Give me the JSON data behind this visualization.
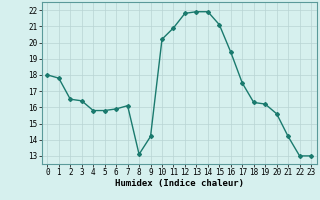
{
  "x": [
    0,
    1,
    2,
    3,
    4,
    5,
    6,
    7,
    8,
    9,
    10,
    11,
    12,
    13,
    14,
    15,
    16,
    17,
    18,
    19,
    20,
    21,
    22,
    23
  ],
  "y": [
    18,
    17.8,
    16.5,
    16.4,
    15.8,
    15.8,
    15.9,
    16.1,
    13.1,
    14.2,
    20.2,
    20.9,
    21.8,
    21.9,
    21.9,
    21.1,
    19.4,
    17.5,
    16.3,
    16.2,
    15.6,
    14.2,
    13.0,
    13.0
  ],
  "line_color": "#1a7a6e",
  "marker": "D",
  "marker_size": 2,
  "bg_color": "#d6f0ee",
  "grid_color": "#b8d4d4",
  "xlabel": "Humidex (Indice chaleur)",
  "ylim": [
    12.5,
    22.5
  ],
  "xlim": [
    -0.5,
    23.5
  ],
  "yticks": [
    13,
    14,
    15,
    16,
    17,
    18,
    19,
    20,
    21,
    22
  ],
  "xticks": [
    0,
    1,
    2,
    3,
    4,
    5,
    6,
    7,
    8,
    9,
    10,
    11,
    12,
    13,
    14,
    15,
    16,
    17,
    18,
    19,
    20,
    21,
    22,
    23
  ],
  "xlabel_fontsize": 6.5,
  "tick_fontsize": 5.5
}
